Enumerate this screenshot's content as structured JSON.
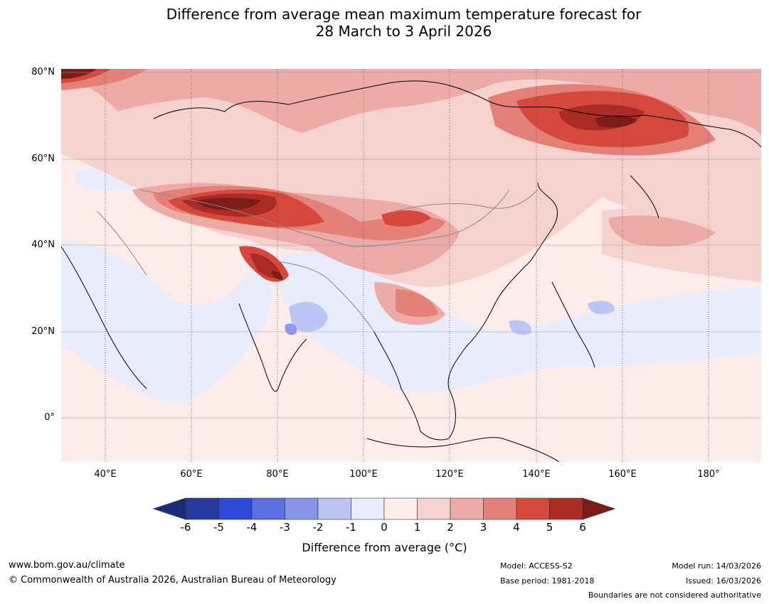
{
  "title": {
    "line1": "Difference from average mean maximum temperature forecast for",
    "line2": "28 March to 3 April 2026"
  },
  "map": {
    "lat_labels": [
      "80°N",
      "60°N",
      "40°N",
      "20°N",
      "0°"
    ],
    "lon_labels": [
      "40°E",
      "60°E",
      "80°E",
      "100°E",
      "120°E",
      "140°E",
      "160°E",
      "180°"
    ],
    "anomaly_colors": {
      "neutral_warm": "#fdece9",
      "neutral_cool": "#e9edfb",
      "warm1": "#f5d2ce",
      "warm2": "#ecaba6",
      "warm3": "#e48077",
      "warm4": "#d6473c",
      "warm5": "#aa2b24",
      "warm6": "#7b1c18",
      "cool1": "#bcc6f5",
      "cool2": "#8a9bea"
    }
  },
  "legend": {
    "ticks": [
      "-6",
      "-5",
      "-4",
      "-3",
      "-2",
      "-1",
      "0",
      "1",
      "2",
      "3",
      "4",
      "5",
      "6"
    ],
    "colors": [
      "#27389f",
      "#2e48d9",
      "#5a6fe1",
      "#8594e8",
      "#bcc6f5",
      "#e9edfb",
      "#fdece9",
      "#f5d2ce",
      "#ecaba6",
      "#e48077",
      "#d6473c",
      "#aa2b24"
    ],
    "low_extend_color": "#1e2b7c",
    "high_extend_color": "#7b1c18",
    "label": "Difference from average (°C)"
  },
  "footer": {
    "website": "www.bom.gov.au/climate",
    "copyright": "© Commonwealth of Australia 2026, Australian Bureau of Meteorology",
    "model": "Model: ACCESS-S2",
    "base_period": "Base period: 1981-2018",
    "model_run": "Model run: 14/03/2026",
    "issued": "Issued: 16/03/2026",
    "boundaries_note": "Boundaries are not considered authoritative"
  }
}
